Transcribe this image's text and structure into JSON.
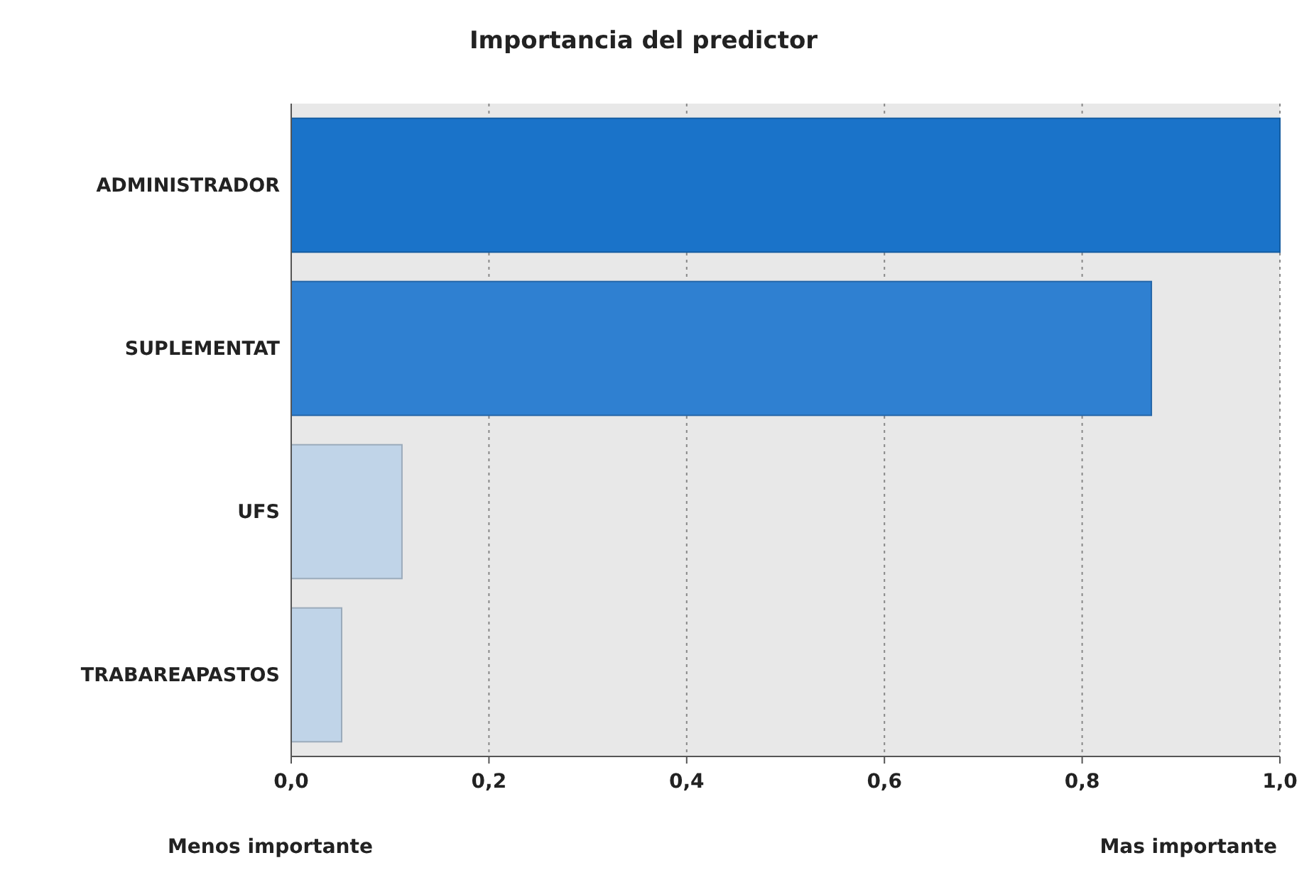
{
  "chart_data": {
    "type": "bar",
    "orientation": "horizontal",
    "title": "Importancia del predictor",
    "categories": [
      "ADMINISTRADOR",
      "SUPLEMENTAT",
      "UFS",
      "TRABAREAPASTOS"
    ],
    "values": [
      1.0,
      0.87,
      0.112,
      0.051
    ],
    "colors": [
      "#1a73c9",
      "#2f80d1",
      "#c0d4e8",
      "#c0d4e8"
    ],
    "xlim": [
      0,
      1
    ],
    "xticks": [
      {
        "value": 0,
        "label": "0,0"
      },
      {
        "value": 0.2,
        "label": "0,2"
      },
      {
        "value": 0.4,
        "label": "0,4"
      },
      {
        "value": 0.6,
        "label": "0,6"
      },
      {
        "value": 0.8,
        "label": "0,8"
      },
      {
        "value": 1,
        "label": "1,0"
      }
    ],
    "grid": "x",
    "annotations": [
      "Menos importante",
      "Mas importante"
    ]
  }
}
